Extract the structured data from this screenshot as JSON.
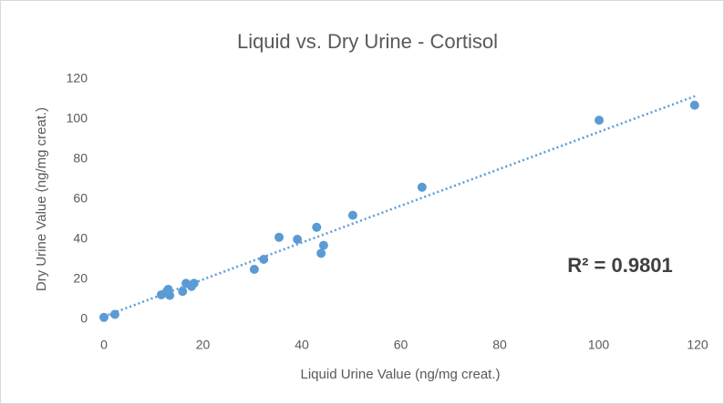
{
  "chart_data": {
    "type": "scatter",
    "title": "Liquid vs. Dry Urine - Cortisol",
    "x_label": "Liquid Urine Value (ng/mg creat.)",
    "y_label": "Dry Urine Value (ng/mg creat.)",
    "annotation": "R² = 0.9801",
    "series": [
      {
        "name": "Cortisol",
        "color": "#5b9bd5",
        "x": [
          0,
          2.2,
          11.6,
          12.7,
          13,
          13.3,
          15.9,
          16.6,
          17.7,
          18.2,
          30.4,
          32.3,
          35.4,
          39.1,
          43,
          43.9,
          44.4,
          50.3,
          64.3,
          100.1,
          119.4
        ],
        "values": [
          1,
          2.5,
          12.3,
          14,
          15,
          12,
          14,
          18,
          16.5,
          18,
          25,
          30,
          41,
          40,
          46,
          33,
          37,
          52,
          66,
          99.5,
          107
        ]
      }
    ],
    "trendline": {
      "color": "#5b9bd5",
      "x": [
        0,
        120
      ],
      "values": [
        1.5,
        112
      ]
    },
    "xlim": [
      0,
      120
    ],
    "xticks": [
      0,
      20,
      40,
      60,
      80,
      100,
      120
    ],
    "ylim": [
      0,
      120
    ],
    "yticks": [
      0,
      20,
      40,
      60,
      80,
      100,
      120
    ],
    "grid": false
  }
}
